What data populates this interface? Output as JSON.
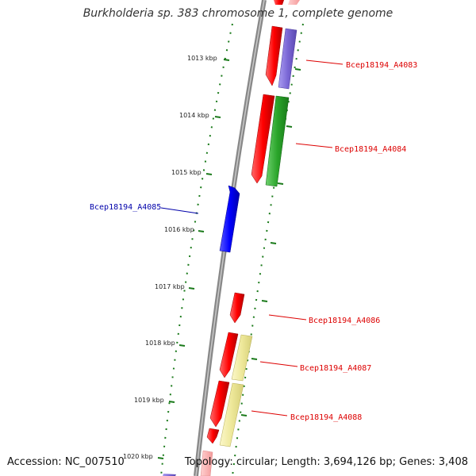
{
  "header": {
    "title": "Burkholderia sp. 383 chromosome 1, complete genome"
  },
  "footer": {
    "accession": "Accession: NC_007510",
    "summary": "Topology: circular; Length: 3,694,126 bp; Genes: 3,408"
  },
  "ruler": {
    "unit": "kbp",
    "ticks": [
      {
        "label": "1013 kbp"
      },
      {
        "label": "1014 kbp"
      },
      {
        "label": "1015 kbp"
      },
      {
        "label": "1016 kbp"
      },
      {
        "label": "1017 kbp"
      },
      {
        "label": "1018 kbp"
      },
      {
        "label": "1019 kbp"
      },
      {
        "label": "1020 kbp"
      }
    ]
  },
  "genes": [
    {
      "label": "Bcep18194_A4083",
      "color": "#dd0000"
    },
    {
      "label": "Bcep18194_A4084",
      "color": "#dd0000"
    },
    {
      "label": "Bcep18194_A4085",
      "color": "#0000aa"
    },
    {
      "label": "Bcep18194_A4086",
      "color": "#dd0000"
    },
    {
      "label": "Bcep18194_A4087",
      "color": "#dd0000"
    },
    {
      "label": "Bcep18194_A4088",
      "color": "#dd0000"
    }
  ],
  "colors": {
    "backbone": "#888888",
    "cds": "#ff0000",
    "reverse_cds": "#0000ff",
    "cog_purple": "#7b68d6",
    "cog_green": "#2aa52a",
    "cog_yellow": "#eee89a",
    "ruler_tick": "#1a7a1a"
  }
}
